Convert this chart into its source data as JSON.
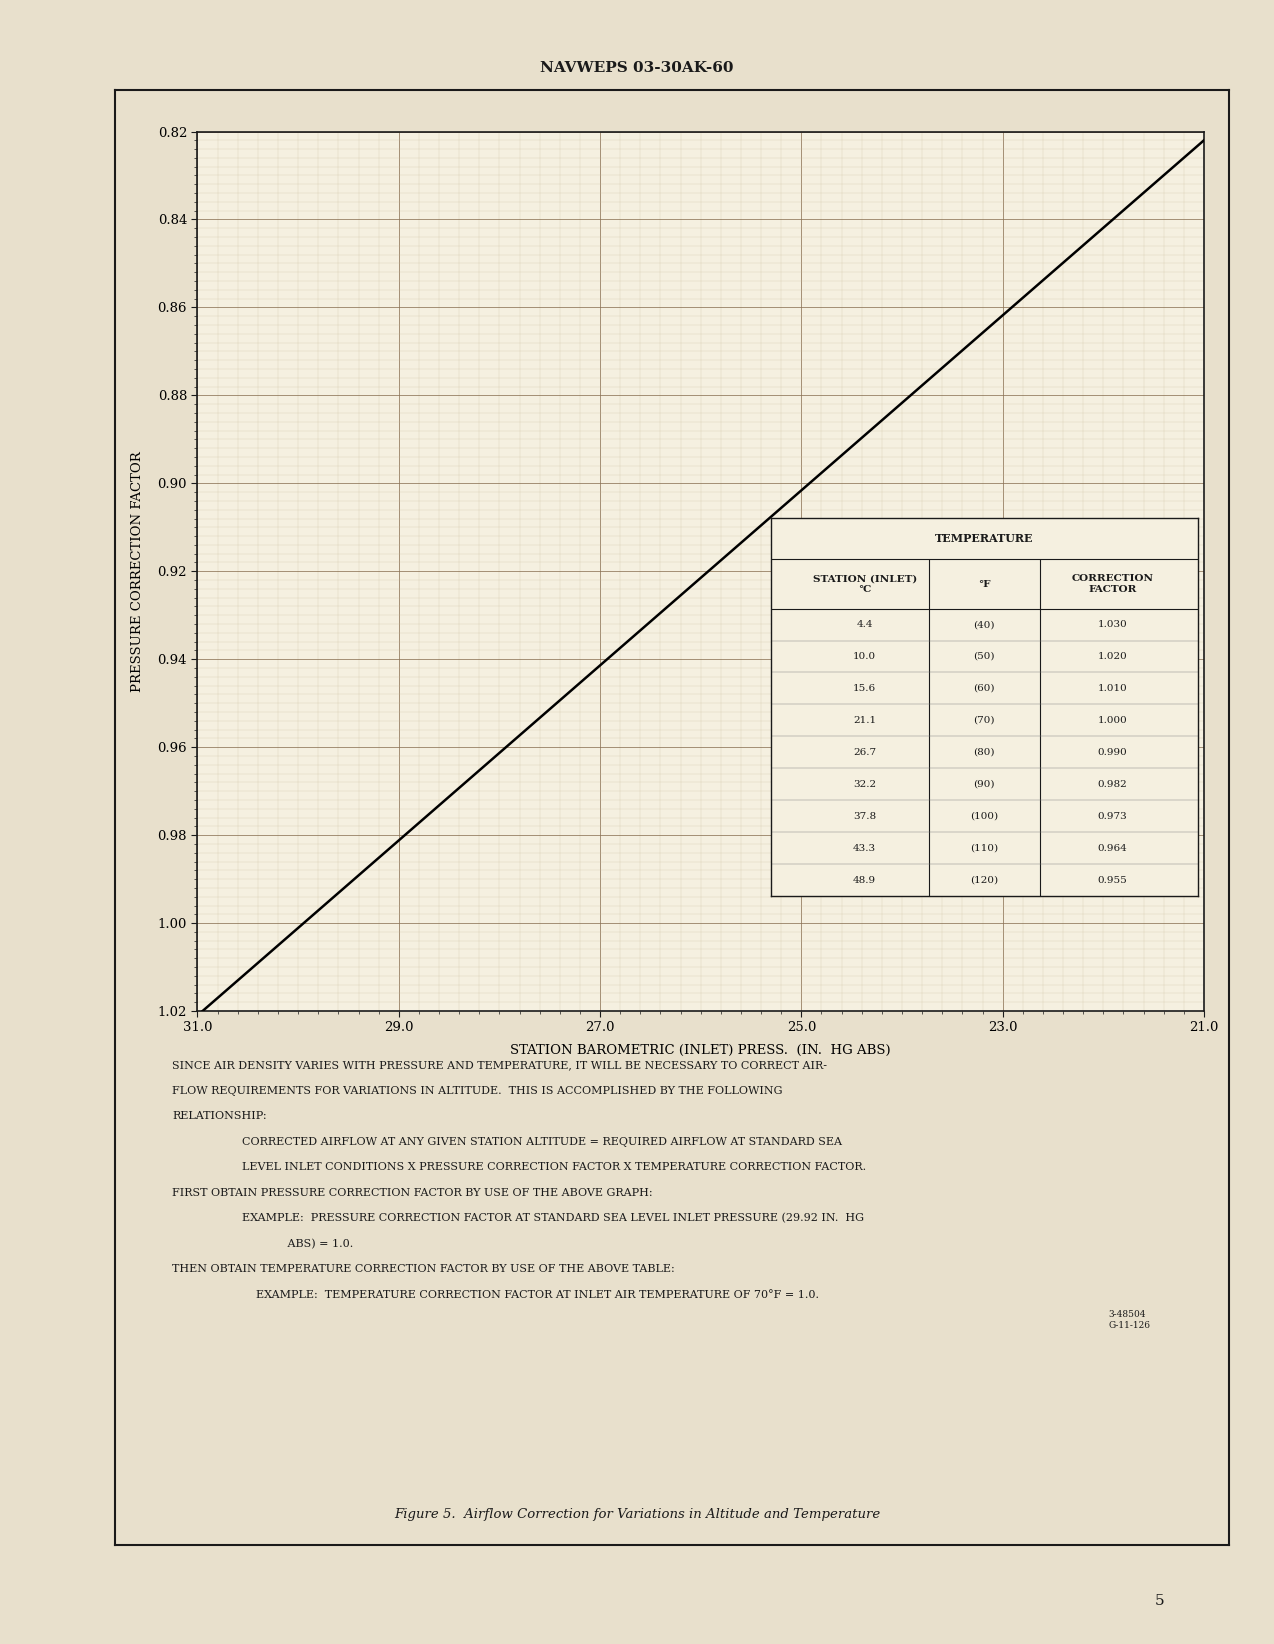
{
  "page_header": "NAVWEPS 03-30AK-60",
  "figure_caption": "Figure 5.  Airflow Correction for Variations in Altitude and Temperature",
  "xlabel": "STATION BAROMETRIC (INLET) PRESS.  (IN.  HG ABS)",
  "ylabel": "PRESSURE CORRECTION FACTOR",
  "x_min": 21.0,
  "x_max": 31.0,
  "y_min": 0.82,
  "y_max": 1.02,
  "x_ticks": [
    31.0,
    29.0,
    27.0,
    25.0,
    23.0,
    21.0
  ],
  "y_ticks": [
    0.82,
    0.84,
    0.86,
    0.88,
    0.9,
    0.92,
    0.94,
    0.96,
    0.98,
    1.0,
    1.02
  ],
  "line_x": [
    21.0,
    31.0
  ],
  "line_y": [
    0.822,
    1.021
  ],
  "line_color": "#000000",
  "line_width": 1.8,
  "bg_color": "#f5f0e0",
  "page_bg": "#e8e0cc",
  "grid_major_color": "#8B7355",
  "grid_minor_color": "#c8b898",
  "table_data": [
    [
      "4.4",
      "(40)",
      "1.030"
    ],
    [
      "10.0",
      "(50)",
      "1.020"
    ],
    [
      "15.6",
      "(60)",
      "1.010"
    ],
    [
      "21.1",
      "(70)",
      "1.000"
    ],
    [
      "26.7",
      "(80)",
      "0.990"
    ],
    [
      "32.2",
      "(90)",
      "0.982"
    ],
    [
      "37.8",
      "(100)",
      "0.973"
    ],
    [
      "43.3",
      "(110)",
      "0.964"
    ],
    [
      "48.9",
      "(120)",
      "0.955"
    ]
  ],
  "body_texts": [
    [
      "SINCE AIR DENSITY VARIES WITH PRESSURE AND TEMPERATURE, IT WILL BE NECESSARY TO CORRECT AIR-",
      false
    ],
    [
      "FLOW REQUIREMENTS FOR VARIATIONS IN ALTITUDE.  THIS IS ACCOMPLISHED BY THE FOLLOWING",
      false
    ],
    [
      "RELATIONSHIP:",
      false
    ],
    [
      "CORRECTED AIRFLOW AT ANY GIVEN STATION ALTITUDE = REQUIRED AIRFLOW AT STANDARD SEA",
      true
    ],
    [
      "LEVEL INLET CONDITIONS X PRESSURE CORRECTION FACTOR X TEMPERATURE CORRECTION FACTOR.",
      true
    ],
    [
      "FIRST OBTAIN PRESSURE CORRECTION FACTOR BY USE OF THE ABOVE GRAPH:",
      false
    ],
    [
      "EXAMPLE:  PRESSURE CORRECTION FACTOR AT STANDARD SEA LEVEL INLET PRESSURE (29.92 IN.  HG",
      true
    ],
    [
      "             ABS) = 1.0.",
      true
    ],
    [
      "THEN OBTAIN TEMPERATURE CORRECTION FACTOR BY USE OF THE ABOVE TABLE:",
      false
    ],
    [
      "    EXAMPLE:  TEMPERATURE CORRECTION FACTOR AT INLET AIR TEMPERATURE OF 70°F = 1.0.",
      true
    ]
  ],
  "page_number": "5"
}
